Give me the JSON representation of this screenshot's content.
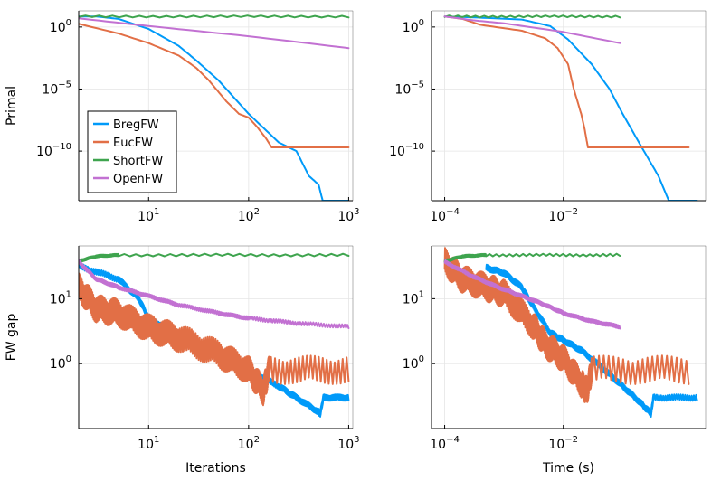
{
  "chart_data": [
    {
      "id": "top-left",
      "type": "line",
      "xscale": "log",
      "yscale": "log",
      "xlim": [
        2,
        1100
      ],
      "ylim": [
        1e-14,
        20
      ],
      "xticks": [
        {
          "v": 10,
          "base": "10",
          "exp": "1"
        },
        {
          "v": 100,
          "base": "10",
          "exp": "2"
        },
        {
          "v": 1000,
          "base": "10",
          "exp": "3"
        }
      ],
      "yticks": [
        {
          "v": 1,
          "base": "10",
          "exp": "0"
        },
        {
          "v": 1e-05,
          "base": "10",
          "exp": "−5"
        },
        {
          "v": 1e-10,
          "base": "10",
          "exp": "−10"
        }
      ],
      "xlabel": "",
      "ylabel": "Primal",
      "legend": "bottom-left",
      "series": [
        {
          "name": "BregFW",
          "points": [
            [
              2,
              7
            ],
            [
              3,
              7
            ],
            [
              5,
              4.5
            ],
            [
              10,
              0.7
            ],
            [
              20,
              0.03
            ],
            [
              30,
              0.002
            ],
            [
              50,
              5e-05
            ],
            [
              100,
              1e-07
            ],
            [
              200,
              5e-10
            ],
            [
              300,
              1e-10
            ],
            [
              400,
              1e-12
            ],
            [
              500,
              2e-13
            ],
            [
              550,
              1e-14
            ],
            [
              1000,
              1e-14
            ]
          ]
        },
        {
          "name": "EucFW",
          "points": [
            [
              2,
              1.8
            ],
            [
              5,
              0.3
            ],
            [
              10,
              0.05
            ],
            [
              20,
              0.005
            ],
            [
              30,
              0.0005
            ],
            [
              40,
              5e-05
            ],
            [
              60,
              1e-06
            ],
            [
              80,
              1e-07
            ],
            [
              100,
              5e-08
            ],
            [
              120,
              1e-08
            ],
            [
              150,
              1e-09
            ],
            [
              170,
              2e-10
            ],
            [
              1000,
              2e-10
            ]
          ]
        },
        {
          "name": "ShortFW",
          "points": [
            [
              2,
              7
            ],
            [
              1000,
              7
            ]
          ],
          "wiggle": 0.08
        },
        {
          "name": "OpenFW",
          "points": [
            [
              2,
              5
            ],
            [
              10,
              1.2
            ],
            [
              100,
              0.18
            ],
            [
              1000,
              0.02
            ]
          ]
        }
      ]
    },
    {
      "id": "top-right",
      "type": "line",
      "xscale": "log",
      "yscale": "log",
      "xlim": [
        6e-05,
        2.5
      ],
      "ylim": [
        1e-14,
        20
      ],
      "xticks": [
        {
          "v": 0.0001,
          "base": "10",
          "exp": "−4"
        },
        {
          "v": 0.01,
          "base": "10",
          "exp": "−2"
        }
      ],
      "yticks": [
        {
          "v": 1,
          "base": "10",
          "exp": "0"
        },
        {
          "v": 1e-05,
          "base": "10",
          "exp": "−5"
        },
        {
          "v": 1e-10,
          "base": "10",
          "exp": "−10"
        }
      ],
      "xlabel": "",
      "ylabel": "",
      "series": [
        {
          "name": "BregFW",
          "points": [
            [
              0.0001,
              7
            ],
            [
              0.0003,
              6
            ],
            [
              0.002,
              4
            ],
            [
              0.006,
              1.2
            ],
            [
              0.012,
              0.1
            ],
            [
              0.03,
              0.001
            ],
            [
              0.06,
              1e-05
            ],
            [
              0.1,
              1e-07
            ],
            [
              0.2,
              3e-10
            ],
            [
              0.4,
              1e-12
            ],
            [
              0.6,
              1e-14
            ],
            [
              1.8,
              1e-14
            ]
          ]
        },
        {
          "name": "EucFW",
          "points": [
            [
              0.0001,
              7
            ],
            [
              0.0002,
              4.5
            ],
            [
              0.0004,
              1.5
            ],
            [
              0.002,
              0.5
            ],
            [
              0.005,
              0.12
            ],
            [
              0.008,
              0.02
            ],
            [
              0.012,
              0.001
            ],
            [
              0.015,
              1e-05
            ],
            [
              0.02,
              1e-07
            ],
            [
              0.023,
              5e-09
            ],
            [
              0.026,
              2e-10
            ],
            [
              1.3,
              2e-10
            ]
          ]
        },
        {
          "name": "ShortFW",
          "points": [
            [
              0.0001,
              7
            ],
            [
              0.09,
              7
            ]
          ],
          "wiggle": 0.08
        },
        {
          "name": "OpenFW",
          "points": [
            [
              0.0001,
              7
            ],
            [
              0.0003,
              3.5
            ],
            [
              0.001,
              2
            ],
            [
              0.01,
              0.4
            ],
            [
              0.09,
              0.05
            ]
          ]
        }
      ]
    },
    {
      "id": "bottom-left",
      "type": "line",
      "xscale": "log",
      "yscale": "log",
      "xlim": [
        2,
        1100
      ],
      "ylim": [
        0.1,
        65
      ],
      "xticks": [
        {
          "v": 10,
          "base": "10",
          "exp": "1"
        },
        {
          "v": 100,
          "base": "10",
          "exp": "2"
        },
        {
          "v": 1000,
          "base": "10",
          "exp": "3"
        }
      ],
      "yticks": [
        {
          "v": 1,
          "base": "10",
          "exp": "0"
        },
        {
          "v": 10,
          "base": "10",
          "exp": "1"
        }
      ],
      "xlabel": "Iterations",
      "ylabel": "FW gap",
      "series": [
        {
          "name": "BregFW",
          "points": [
            [
              2,
              32
            ],
            [
              5,
              20
            ],
            [
              8,
              10
            ],
            [
              10,
              5
            ],
            [
              20,
              2.8
            ],
            [
              50,
              1.5
            ],
            [
              100,
              0.8
            ],
            [
              200,
              0.45
            ],
            [
              300,
              0.3
            ],
            [
              500,
              0.18
            ],
            [
              520,
              0.17
            ],
            [
              560,
              0.3
            ],
            [
              1000,
              0.3
            ]
          ],
          "wiggle": 0.05
        },
        {
          "name": "EucFW",
          "points": [
            [
              2,
              15
            ],
            [
              3,
              7
            ],
            [
              5,
              6
            ],
            [
              10,
              3.5
            ],
            [
              20,
              2.5
            ],
            [
              50,
              1.4
            ],
            [
              100,
              0.8
            ],
            [
              140,
              0.38
            ],
            [
              160,
              0.8
            ],
            [
              1000,
              0.8
            ]
          ],
          "wiggle": 0.22
        },
        {
          "name": "ShortFW",
          "points": [
            [
              2,
              38
            ],
            [
              3,
              45
            ],
            [
              5,
              47
            ],
            [
              1000,
              47
            ]
          ],
          "wiggle": 0.02
        },
        {
          "name": "OpenFW",
          "points": [
            [
              2,
              37
            ],
            [
              3,
              20
            ],
            [
              5,
              15
            ],
            [
              10,
              11
            ],
            [
              20,
              8
            ],
            [
              50,
              6
            ],
            [
              100,
              5
            ],
            [
              300,
              4.2
            ],
            [
              1000,
              3.7
            ]
          ],
          "wiggle": 0.03
        }
      ]
    },
    {
      "id": "bottom-right",
      "type": "line",
      "xscale": "log",
      "yscale": "log",
      "xlim": [
        6e-05,
        2.5
      ],
      "ylim": [
        0.1,
        65
      ],
      "xticks": [
        {
          "v": 0.0001,
          "base": "10",
          "exp": "−4"
        },
        {
          "v": 0.01,
          "base": "10",
          "exp": "−2"
        }
      ],
      "yticks": [
        {
          "v": 1,
          "base": "10",
          "exp": "0"
        },
        {
          "v": 10,
          "base": "10",
          "exp": "1"
        }
      ],
      "xlabel": "Time (s)",
      "ylabel": "",
      "series": [
        {
          "name": "BregFW",
          "points": [
            [
              0.0005,
              30
            ],
            [
              0.001,
              25
            ],
            [
              0.002,
              15
            ],
            [
              0.003,
              8
            ],
            [
              0.006,
              3
            ],
            [
              0.01,
              2.3
            ],
            [
              0.02,
              1.6
            ],
            [
              0.05,
              0.8
            ],
            [
              0.1,
              0.45
            ],
            [
              0.2,
              0.25
            ],
            [
              0.3,
              0.17
            ],
            [
              0.33,
              0.3
            ],
            [
              1.8,
              0.3
            ]
          ],
          "wiggle": 0.05
        },
        {
          "name": "EucFW",
          "points": [
            [
              0.0001,
              37
            ],
            [
              0.0002,
              20
            ],
            [
              0.0005,
              15
            ],
            [
              0.001,
              12
            ],
            [
              0.003,
              4
            ],
            [
              0.005,
              2
            ],
            [
              0.01,
              1.2
            ],
            [
              0.02,
              0.5
            ],
            [
              0.025,
              0.38
            ],
            [
              0.03,
              0.8
            ],
            [
              1.3,
              0.8
            ]
          ],
          "wiggle": 0.22
        },
        {
          "name": "ShortFW",
          "points": [
            [
              0.0001,
              38
            ],
            [
              0.0002,
              45
            ],
            [
              0.0005,
              47
            ],
            [
              0.09,
              47
            ]
          ],
          "wiggle": 0.02
        },
        {
          "name": "OpenFW",
          "points": [
            [
              0.0001,
              37
            ],
            [
              0.0003,
              22
            ],
            [
              0.0008,
              15
            ],
            [
              0.002,
              11
            ],
            [
              0.005,
              8
            ],
            [
              0.01,
              6
            ],
            [
              0.03,
              4.5
            ],
            [
              0.09,
              3.7
            ]
          ],
          "wiggle": 0.03
        }
      ]
    }
  ],
  "series_colors": {
    "BregFW": "#009af9",
    "EucFW": "#e26f46",
    "ShortFW": "#3ea44e",
    "OpenFW": "#c271d2"
  },
  "legend_entries": [
    "BregFW",
    "EucFW",
    "ShortFW",
    "OpenFW"
  ]
}
